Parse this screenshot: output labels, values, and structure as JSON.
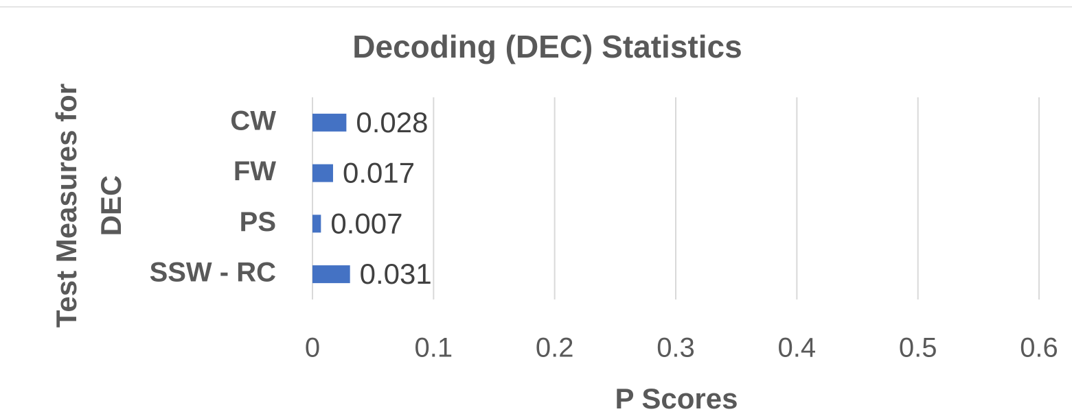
{
  "chart_data": {
    "type": "bar",
    "orientation": "horizontal",
    "title": "Decoding (DEC) Statistics",
    "y_label": [
      "Test Measures for",
      "DEC"
    ],
    "x_label": "P Scores",
    "categories": [
      "CW",
      "FW",
      "PS",
      "SSW - RC"
    ],
    "values": [
      0.028,
      0.017,
      0.007,
      0.031
    ],
    "color": "#4472c4",
    "xlim": [
      0,
      0.6
    ],
    "xticks": [
      0,
      0.1,
      0.2,
      0.3,
      0.4,
      0.5,
      0.6
    ],
    "grid": true
  }
}
